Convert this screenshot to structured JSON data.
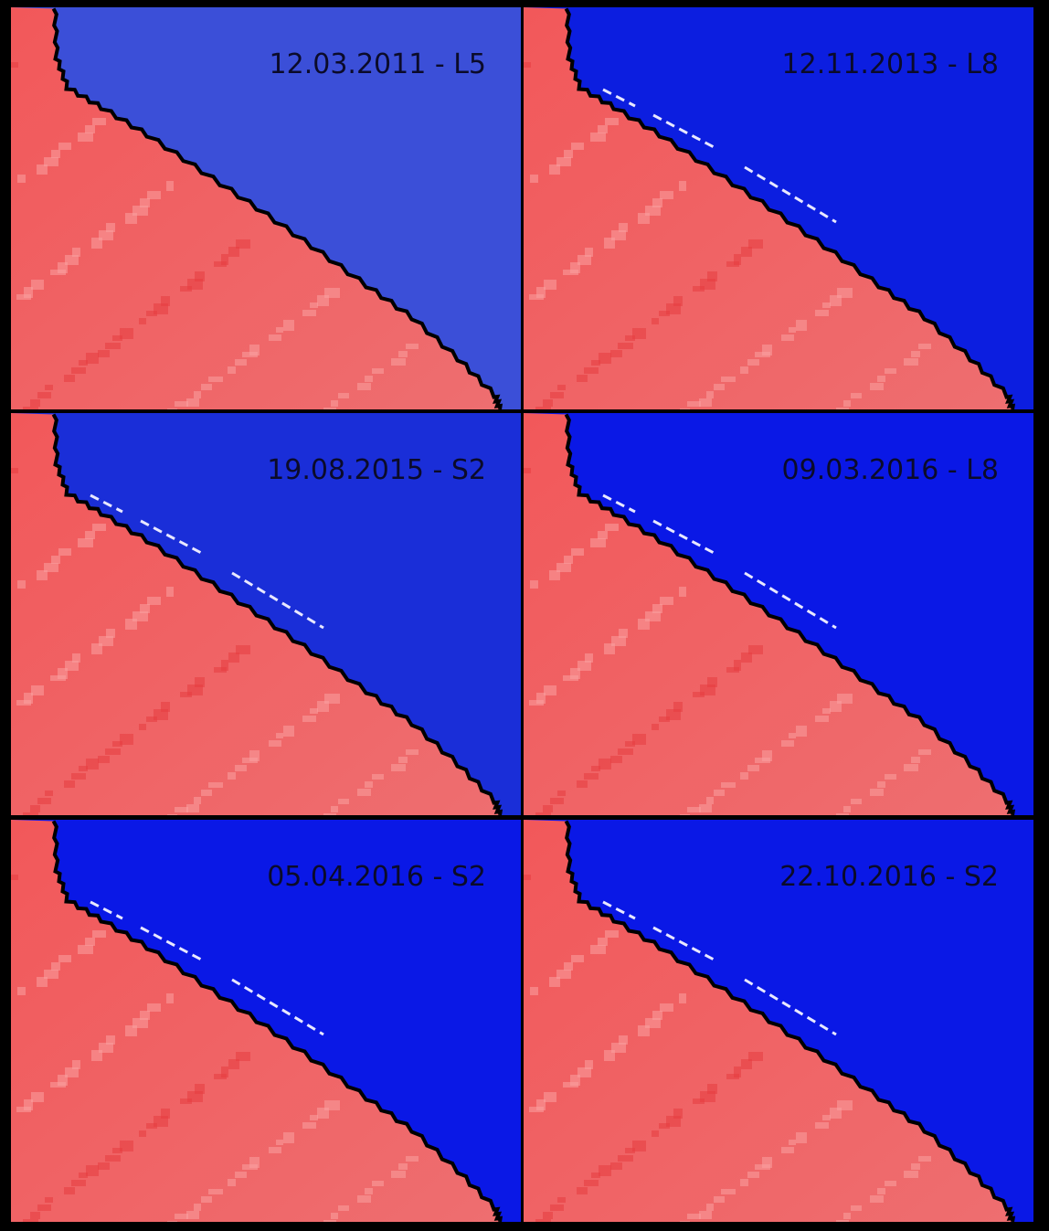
{
  "panels": [
    {
      "label": "12.03.2011 - L5"
    },
    {
      "label": "12.11.2013 - L8"
    },
    {
      "label": "19.08.2015 - S2"
    },
    {
      "label": "09.03.2016 - L8"
    },
    {
      "label": "05.04.2016 - S2"
    },
    {
      "label": "22.10.2016 - S2"
    }
  ]
}
